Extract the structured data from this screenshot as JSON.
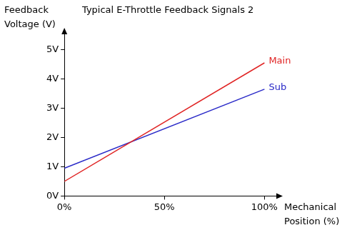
{
  "chart_data": {
    "type": "line",
    "title": "Typical E-Throttle Feedback Signals 2",
    "x_label": "Mechanical Position (%)",
    "y_label": "Feedback Voltage (V)",
    "x": [
      0,
      100
    ],
    "series": [
      {
        "name": "Main",
        "color": "#e02424",
        "values": [
          0.5,
          4.55
        ]
      },
      {
        "name": "Sub",
        "color": "#2a2ac8",
        "values": [
          0.95,
          3.65
        ]
      }
    ],
    "xlim": [
      0,
      107
    ],
    "xticks": [
      {
        "value": 0,
        "label": "0%"
      },
      {
        "value": 50,
        "label": "50%"
      },
      {
        "value": 100,
        "label": "100%"
      }
    ],
    "ylim": [
      0,
      5.6
    ],
    "yticks": [
      {
        "value": 0,
        "label": "0V"
      },
      {
        "value": 1,
        "label": "1V"
      },
      {
        "value": 2,
        "label": "2V"
      },
      {
        "value": 3,
        "label": "3V"
      },
      {
        "value": 4,
        "label": "4V"
      },
      {
        "value": 5,
        "label": "5V"
      }
    ],
    "grid": false
  }
}
